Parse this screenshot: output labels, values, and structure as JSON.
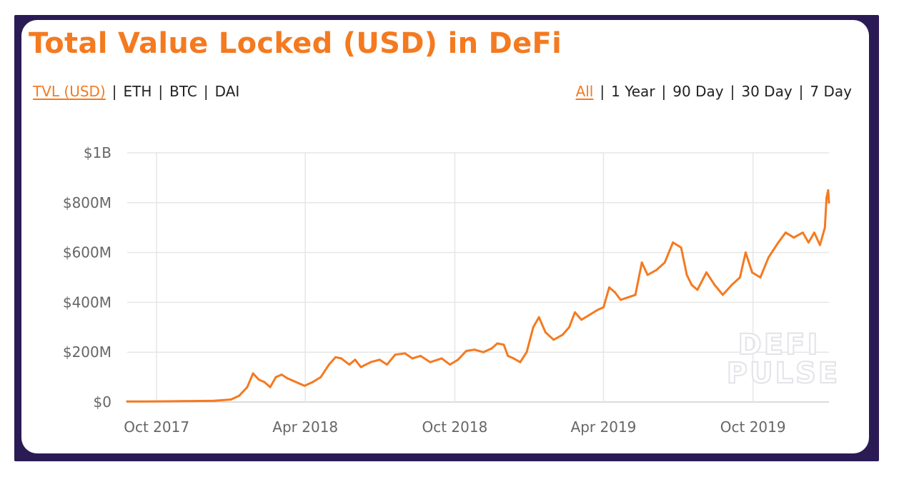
{
  "title": "Total Value Locked (USD) in DeFi",
  "colors": {
    "accent": "#f47a20",
    "frame": "#2b1b54",
    "grid": "#e6e6e6",
    "watermark": "#e3e3e8"
  },
  "metric_options": [
    {
      "label": "TVL (USD)",
      "active": true
    },
    {
      "label": "ETH",
      "active": false
    },
    {
      "label": "BTC",
      "active": false
    },
    {
      "label": "DAI",
      "active": false
    }
  ],
  "range_options": [
    {
      "label": "All",
      "active": true
    },
    {
      "label": "1 Year",
      "active": false
    },
    {
      "label": "90 Day",
      "active": false
    },
    {
      "label": "30 Day",
      "active": false
    },
    {
      "label": "7 Day",
      "active": false
    }
  ],
  "separator": "|",
  "watermark": {
    "line1": "DEFI",
    "line2": "PULSE"
  },
  "chart_data": {
    "type": "line",
    "title": "Total Value Locked (USD) in DeFi",
    "xlabel": "",
    "ylabel": "",
    "x_ticks": [
      {
        "date": "2017-10-01",
        "label": "Oct 2017"
      },
      {
        "date": "2018-04-01",
        "label": "Apr 2018"
      },
      {
        "date": "2018-10-01",
        "label": "Oct 2018"
      },
      {
        "date": "2019-04-01",
        "label": "Apr 2019"
      },
      {
        "date": "2019-10-01",
        "label": "Oct 2019"
      }
    ],
    "xlim": [
      "2017-08-26",
      "2020-01-02"
    ],
    "y_ticks": [
      {
        "value": 0,
        "label": "$0"
      },
      {
        "value": 200000000,
        "label": "$200M"
      },
      {
        "value": 400000000,
        "label": "$400M"
      },
      {
        "value": 600000000,
        "label": "$600M"
      },
      {
        "value": 800000000,
        "label": "$800M"
      },
      {
        "value": 1000000000,
        "label": "$1B"
      }
    ],
    "ylim": [
      0,
      1000000000
    ],
    "grid": true,
    "legend": "none",
    "series": [
      {
        "color": "#f47a20",
        "points": [
          [
            "2017-08-26",
            2000000
          ],
          [
            "2017-09-15",
            2000000
          ],
          [
            "2017-10-15",
            3000000
          ],
          [
            "2017-11-15",
            4000000
          ],
          [
            "2017-12-10",
            5000000
          ],
          [
            "2017-12-31",
            10000000
          ],
          [
            "2018-01-10",
            25000000
          ],
          [
            "2018-01-20",
            60000000
          ],
          [
            "2018-01-27",
            115000000
          ],
          [
            "2018-02-03",
            90000000
          ],
          [
            "2018-02-10",
            80000000
          ],
          [
            "2018-02-17",
            60000000
          ],
          [
            "2018-02-24",
            100000000
          ],
          [
            "2018-03-03",
            110000000
          ],
          [
            "2018-03-10",
            95000000
          ],
          [
            "2018-03-17",
            85000000
          ],
          [
            "2018-03-24",
            75000000
          ],
          [
            "2018-03-31",
            65000000
          ],
          [
            "2018-04-10",
            80000000
          ],
          [
            "2018-04-20",
            100000000
          ],
          [
            "2018-04-30",
            150000000
          ],
          [
            "2018-05-08",
            180000000
          ],
          [
            "2018-05-15",
            175000000
          ],
          [
            "2018-05-25",
            150000000
          ],
          [
            "2018-06-01",
            170000000
          ],
          [
            "2018-06-08",
            140000000
          ],
          [
            "2018-06-20",
            160000000
          ],
          [
            "2018-07-01",
            170000000
          ],
          [
            "2018-07-10",
            150000000
          ],
          [
            "2018-07-20",
            190000000
          ],
          [
            "2018-08-01",
            195000000
          ],
          [
            "2018-08-10",
            175000000
          ],
          [
            "2018-08-20",
            185000000
          ],
          [
            "2018-09-01",
            160000000
          ],
          [
            "2018-09-15",
            175000000
          ],
          [
            "2018-09-25",
            150000000
          ],
          [
            "2018-10-05",
            170000000
          ],
          [
            "2018-10-15",
            205000000
          ],
          [
            "2018-10-25",
            210000000
          ],
          [
            "2018-11-05",
            200000000
          ],
          [
            "2018-11-15",
            215000000
          ],
          [
            "2018-11-22",
            235000000
          ],
          [
            "2018-11-30",
            230000000
          ],
          [
            "2018-12-05",
            185000000
          ],
          [
            "2018-12-12",
            175000000
          ],
          [
            "2018-12-20",
            160000000
          ],
          [
            "2018-12-28",
            200000000
          ],
          [
            "2019-01-05",
            300000000
          ],
          [
            "2019-01-12",
            340000000
          ],
          [
            "2019-01-20",
            280000000
          ],
          [
            "2019-01-30",
            250000000
          ],
          [
            "2019-02-10",
            270000000
          ],
          [
            "2019-02-18",
            300000000
          ],
          [
            "2019-02-25",
            360000000
          ],
          [
            "2019-03-05",
            330000000
          ],
          [
            "2019-03-15",
            350000000
          ],
          [
            "2019-03-25",
            370000000
          ],
          [
            "2019-04-01",
            380000000
          ],
          [
            "2019-04-08",
            460000000
          ],
          [
            "2019-04-15",
            440000000
          ],
          [
            "2019-04-22",
            410000000
          ],
          [
            "2019-05-01",
            420000000
          ],
          [
            "2019-05-10",
            430000000
          ],
          [
            "2019-05-18",
            560000000
          ],
          [
            "2019-05-25",
            510000000
          ],
          [
            "2019-06-05",
            530000000
          ],
          [
            "2019-06-15",
            560000000
          ],
          [
            "2019-06-25",
            640000000
          ],
          [
            "2019-07-05",
            620000000
          ],
          [
            "2019-07-12",
            510000000
          ],
          [
            "2019-07-18",
            470000000
          ],
          [
            "2019-07-25",
            450000000
          ],
          [
            "2019-08-05",
            520000000
          ],
          [
            "2019-08-15",
            470000000
          ],
          [
            "2019-08-25",
            430000000
          ],
          [
            "2019-09-05",
            470000000
          ],
          [
            "2019-09-15",
            500000000
          ],
          [
            "2019-09-22",
            600000000
          ],
          [
            "2019-09-30",
            520000000
          ],
          [
            "2019-10-10",
            500000000
          ],
          [
            "2019-10-20",
            580000000
          ],
          [
            "2019-11-01",
            640000000
          ],
          [
            "2019-11-10",
            680000000
          ],
          [
            "2019-11-20",
            660000000
          ],
          [
            "2019-12-01",
            680000000
          ],
          [
            "2019-12-08",
            640000000
          ],
          [
            "2019-12-15",
            680000000
          ],
          [
            "2019-12-22",
            630000000
          ],
          [
            "2019-12-28",
            700000000
          ],
          [
            "2019-12-30",
            820000000
          ],
          [
            "2020-01-01",
            850000000
          ],
          [
            "2020-01-02",
            800000000
          ]
        ]
      }
    ]
  }
}
